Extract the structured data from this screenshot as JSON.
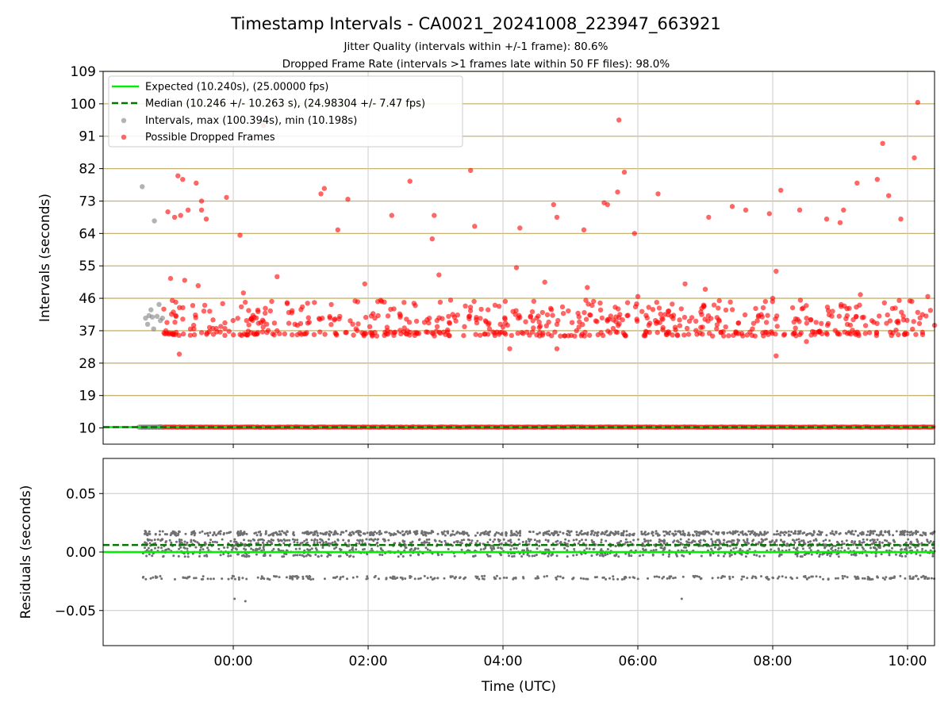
{
  "chart_data": [
    {
      "type": "scatter",
      "title": "Timestamp Intervals - CA0021_20241008_223947_663921",
      "subtitles": [
        "Jitter Quality (intervals within +/-1 frame): 80.6%",
        "Dropped Frame Rate (intervals >1 frames late within 50 FF files): 98.0%"
      ],
      "ylabel": "Intervals (seconds)",
      "ylim": [
        5.5,
        109
      ],
      "yticks": [
        10,
        19,
        28,
        37,
        46,
        55,
        64,
        73,
        82,
        91,
        100,
        109
      ],
      "xlim_hours": [
        -1.93,
        10.4
      ],
      "xticks": [
        "00:00",
        "02:00",
        "04:00",
        "06:00",
        "08:00",
        "10:00"
      ],
      "grid": true,
      "legend_position": "top-left",
      "legend": [
        "Expected (10.240s), (25.00000 fps)",
        "Median (10.246 +/- 10.263 s), (24.98304 +/- 7.47 fps)",
        "Intervals, max (100.394s), min (10.198s)",
        "Possible Dropped Frames"
      ],
      "expected_line": 10.24,
      "median_line": 10.246,
      "colors": {
        "expected": "#00ee00",
        "median": "#007700",
        "intervals": "#808080",
        "dropped": "#ff0000",
        "hgrid": "#c8b46e"
      },
      "series": [
        {
          "name": "Intervals, max (100.394s), min (10.198s)",
          "points": [
            [
              -1.35,
              77.0
            ],
            [
              -1.3,
              40.5
            ],
            [
              -1.27,
              38.8
            ],
            [
              -1.25,
              41.2
            ],
            [
              -1.22,
              42.8
            ],
            [
              -1.2,
              40.8
            ],
            [
              -1.18,
              37.5
            ],
            [
              -1.17,
              67.5
            ],
            [
              -1.13,
              41.0
            ],
            [
              -1.1,
              44.3
            ],
            [
              -1.08,
              39.8
            ],
            [
              -1.05,
              40.5
            ],
            [
              -1.35,
              10.2
            ],
            [
              -1.3,
              10.2
            ],
            [
              -1.25,
              10.2
            ],
            [
              -1.2,
              10.2
            ],
            [
              -1.15,
              10.2
            ],
            [
              -1.1,
              10.2
            ]
          ]
        },
        {
          "name": "Possible Dropped Frames",
          "points": [
            [
              -1.03,
              43.0
            ],
            [
              -1.0,
              37.0
            ],
            [
              -0.97,
              70.0
            ],
            [
              -0.93,
              51.5
            ],
            [
              -0.9,
              36.0
            ],
            [
              -0.87,
              68.5
            ],
            [
              -0.85,
              41.0
            ],
            [
              -0.82,
              80.0
            ],
            [
              -0.8,
              30.5
            ],
            [
              -0.78,
              69.0
            ],
            [
              -0.75,
              79.0
            ],
            [
              -0.72,
              51.0
            ],
            [
              -0.67,
              70.5
            ],
            [
              -0.6,
              44.0
            ],
            [
              -0.55,
              78.0
            ],
            [
              -0.52,
              49.5
            ],
            [
              -0.47,
              73.0
            ],
            [
              -0.47,
              70.5
            ],
            [
              -0.4,
              68.0
            ],
            [
              -0.3,
              40.0
            ],
            [
              -0.1,
              74.0
            ],
            [
              0.1,
              63.5
            ],
            [
              0.15,
              47.5
            ],
            [
              0.45,
              94.0
            ],
            [
              0.55,
              42.5
            ],
            [
              0.65,
              52.0
            ],
            [
              0.8,
              44.5
            ],
            [
              0.95,
              38.5
            ],
            [
              1.0,
              39.0
            ],
            [
              1.3,
              75.0
            ],
            [
              1.35,
              76.5
            ],
            [
              1.55,
              65.0
            ],
            [
              1.7,
              73.5
            ],
            [
              1.95,
              50.0
            ],
            [
              2.1,
              40.5
            ],
            [
              2.35,
              69.0
            ],
            [
              2.62,
              78.5
            ],
            [
              2.7,
              44.0
            ],
            [
              2.95,
              62.5
            ],
            [
              2.98,
              69.0
            ],
            [
              3.05,
              52.5
            ],
            [
              3.52,
              81.5
            ],
            [
              3.58,
              66.0
            ],
            [
              3.8,
              37.5
            ],
            [
              4.0,
              38.0
            ],
            [
              4.1,
              32.0
            ],
            [
              4.2,
              54.5
            ],
            [
              4.25,
              65.5
            ],
            [
              4.5,
              40.5
            ],
            [
              4.62,
              50.5
            ],
            [
              4.75,
              72.0
            ],
            [
              4.8,
              68.5
            ],
            [
              4.8,
              32.0
            ],
            [
              5.2,
              65.0
            ],
            [
              5.25,
              49.0
            ],
            [
              5.5,
              72.5
            ],
            [
              5.55,
              72.0
            ],
            [
              5.7,
              75.5
            ],
            [
              5.72,
              95.5
            ],
            [
              5.8,
              81.0
            ],
            [
              5.95,
              64.0
            ],
            [
              6.0,
              46.5
            ],
            [
              6.3,
              75.0
            ],
            [
              6.5,
              41.0
            ],
            [
              6.7,
              50.0
            ],
            [
              7.0,
              48.5
            ],
            [
              7.05,
              68.5
            ],
            [
              7.2,
              40.0
            ],
            [
              7.4,
              71.5
            ],
            [
              7.6,
              70.5
            ],
            [
              7.95,
              69.5
            ],
            [
              8.0,
              46.0
            ],
            [
              8.05,
              30.0
            ],
            [
              8.05,
              53.5
            ],
            [
              8.12,
              76.0
            ],
            [
              8.4,
              70.5
            ],
            [
              8.5,
              34.0
            ],
            [
              8.8,
              68.0
            ],
            [
              9.0,
              67.0
            ],
            [
              9.05,
              70.5
            ],
            [
              9.25,
              78.0
            ],
            [
              9.3,
              47.0
            ],
            [
              9.55,
              79.0
            ],
            [
              9.63,
              89.0
            ],
            [
              9.72,
              74.5
            ],
            [
              9.9,
              68.0
            ],
            [
              9.95,
              36.0
            ],
            [
              10.1,
              85.0
            ],
            [
              10.15,
              100.4
            ],
            [
              10.3,
              46.5
            ],
            [
              10.4,
              38.5
            ]
          ]
        }
      ]
    },
    {
      "type": "scatter",
      "ylabel": "Residuals (seconds)",
      "xlabel": "Time (UTC)",
      "ylim": [
        -0.08,
        0.08
      ],
      "yticks": [
        -0.05,
        0.0,
        0.05
      ],
      "ytick_labels": [
        "−0.05",
        "0.00",
        "0.05"
      ],
      "xlim_hours": [
        -1.93,
        10.4
      ],
      "xticks": [
        "00:00",
        "02:00",
        "04:00",
        "06:00",
        "08:00",
        "10:00"
      ],
      "grid": true,
      "expected_line": 0.0,
      "median_line": 0.006,
      "residual_levels": [
        -0.041,
        -0.022,
        0.0,
        0.008,
        0.016
      ],
      "colors": {
        "expected": "#00ee00",
        "median": "#007700",
        "points": "#707070",
        "grid": "#c8c8c8"
      }
    }
  ]
}
